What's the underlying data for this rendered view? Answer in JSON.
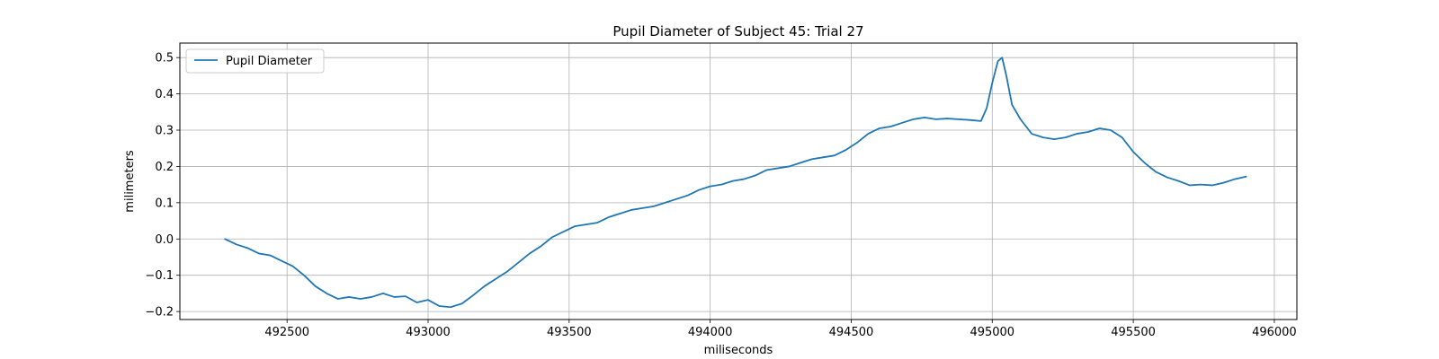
{
  "chart_data": {
    "type": "line",
    "title": "Pupil Diameter of Subject 45: Trial 27",
    "xlabel": "miliseconds",
    "ylabel": "milimeters",
    "xlim": [
      492120,
      496080
    ],
    "ylim": [
      -0.222,
      0.54
    ],
    "xticks": [
      492500,
      493000,
      493500,
      494000,
      494500,
      495000,
      495500,
      496000
    ],
    "xtick_labels": [
      "492500",
      "493000",
      "493500",
      "494000",
      "494500",
      "495000",
      "495500",
      "496000"
    ],
    "yticks": [
      -0.2,
      -0.1,
      0.0,
      0.1,
      0.2,
      0.3,
      0.4,
      0.5
    ],
    "ytick_labels": [
      "−0.2",
      "−0.1",
      "0.0",
      "0.1",
      "0.2",
      "0.3",
      "0.4",
      "0.5"
    ],
    "grid": true,
    "legend": {
      "position": "top-left",
      "entries": [
        "Pupil Diameter"
      ]
    },
    "series": [
      {
        "name": "Pupil Diameter",
        "color": "#1f77b4",
        "x": [
          492280,
          492320,
          492360,
          492400,
          492440,
          492480,
          492520,
          492560,
          492600,
          492640,
          492680,
          492720,
          492760,
          492800,
          492840,
          492880,
          492920,
          492960,
          493000,
          493040,
          493080,
          493120,
          493160,
          493200,
          493240,
          493280,
          493320,
          493360,
          493400,
          493440,
          493480,
          493520,
          493560,
          493600,
          493640,
          493680,
          493720,
          493760,
          493800,
          493840,
          493880,
          493920,
          493960,
          494000,
          494040,
          494080,
          494120,
          494160,
          494200,
          494240,
          494280,
          494320,
          494360,
          494400,
          494440,
          494480,
          494520,
          494560,
          494600,
          494640,
          494680,
          494720,
          494760,
          494800,
          494840,
          494880,
          494920,
          494960,
          494980,
          495000,
          495020,
          495035,
          495050,
          495070,
          495100,
          495140,
          495180,
          495220,
          495260,
          495300,
          495340,
          495380,
          495420,
          495460,
          495500,
          495540,
          495580,
          495620,
          495660,
          495700,
          495740,
          495780,
          495820,
          495860,
          495900
        ],
        "y": [
          0.0,
          -0.015,
          -0.025,
          -0.04,
          -0.045,
          -0.06,
          -0.075,
          -0.1,
          -0.13,
          -0.15,
          -0.165,
          -0.16,
          -0.165,
          -0.16,
          -0.15,
          -0.16,
          -0.158,
          -0.175,
          -0.168,
          -0.185,
          -0.188,
          -0.178,
          -0.155,
          -0.13,
          -0.11,
          -0.09,
          -0.065,
          -0.04,
          -0.02,
          0.005,
          0.02,
          0.035,
          0.04,
          0.045,
          0.06,
          0.07,
          0.08,
          0.085,
          0.09,
          0.1,
          0.11,
          0.12,
          0.135,
          0.145,
          0.15,
          0.16,
          0.165,
          0.175,
          0.19,
          0.195,
          0.2,
          0.21,
          0.22,
          0.225,
          0.23,
          0.245,
          0.265,
          0.29,
          0.305,
          0.31,
          0.32,
          0.33,
          0.335,
          0.33,
          0.332,
          0.33,
          0.328,
          0.325,
          0.36,
          0.43,
          0.49,
          0.5,
          0.45,
          0.37,
          0.33,
          0.29,
          0.28,
          0.275,
          0.28,
          0.29,
          0.295,
          0.305,
          0.3,
          0.28,
          0.24,
          0.21,
          0.185,
          0.17,
          0.16,
          0.148,
          0.15,
          0.148,
          0.155,
          0.165,
          0.172
        ]
      }
    ]
  }
}
